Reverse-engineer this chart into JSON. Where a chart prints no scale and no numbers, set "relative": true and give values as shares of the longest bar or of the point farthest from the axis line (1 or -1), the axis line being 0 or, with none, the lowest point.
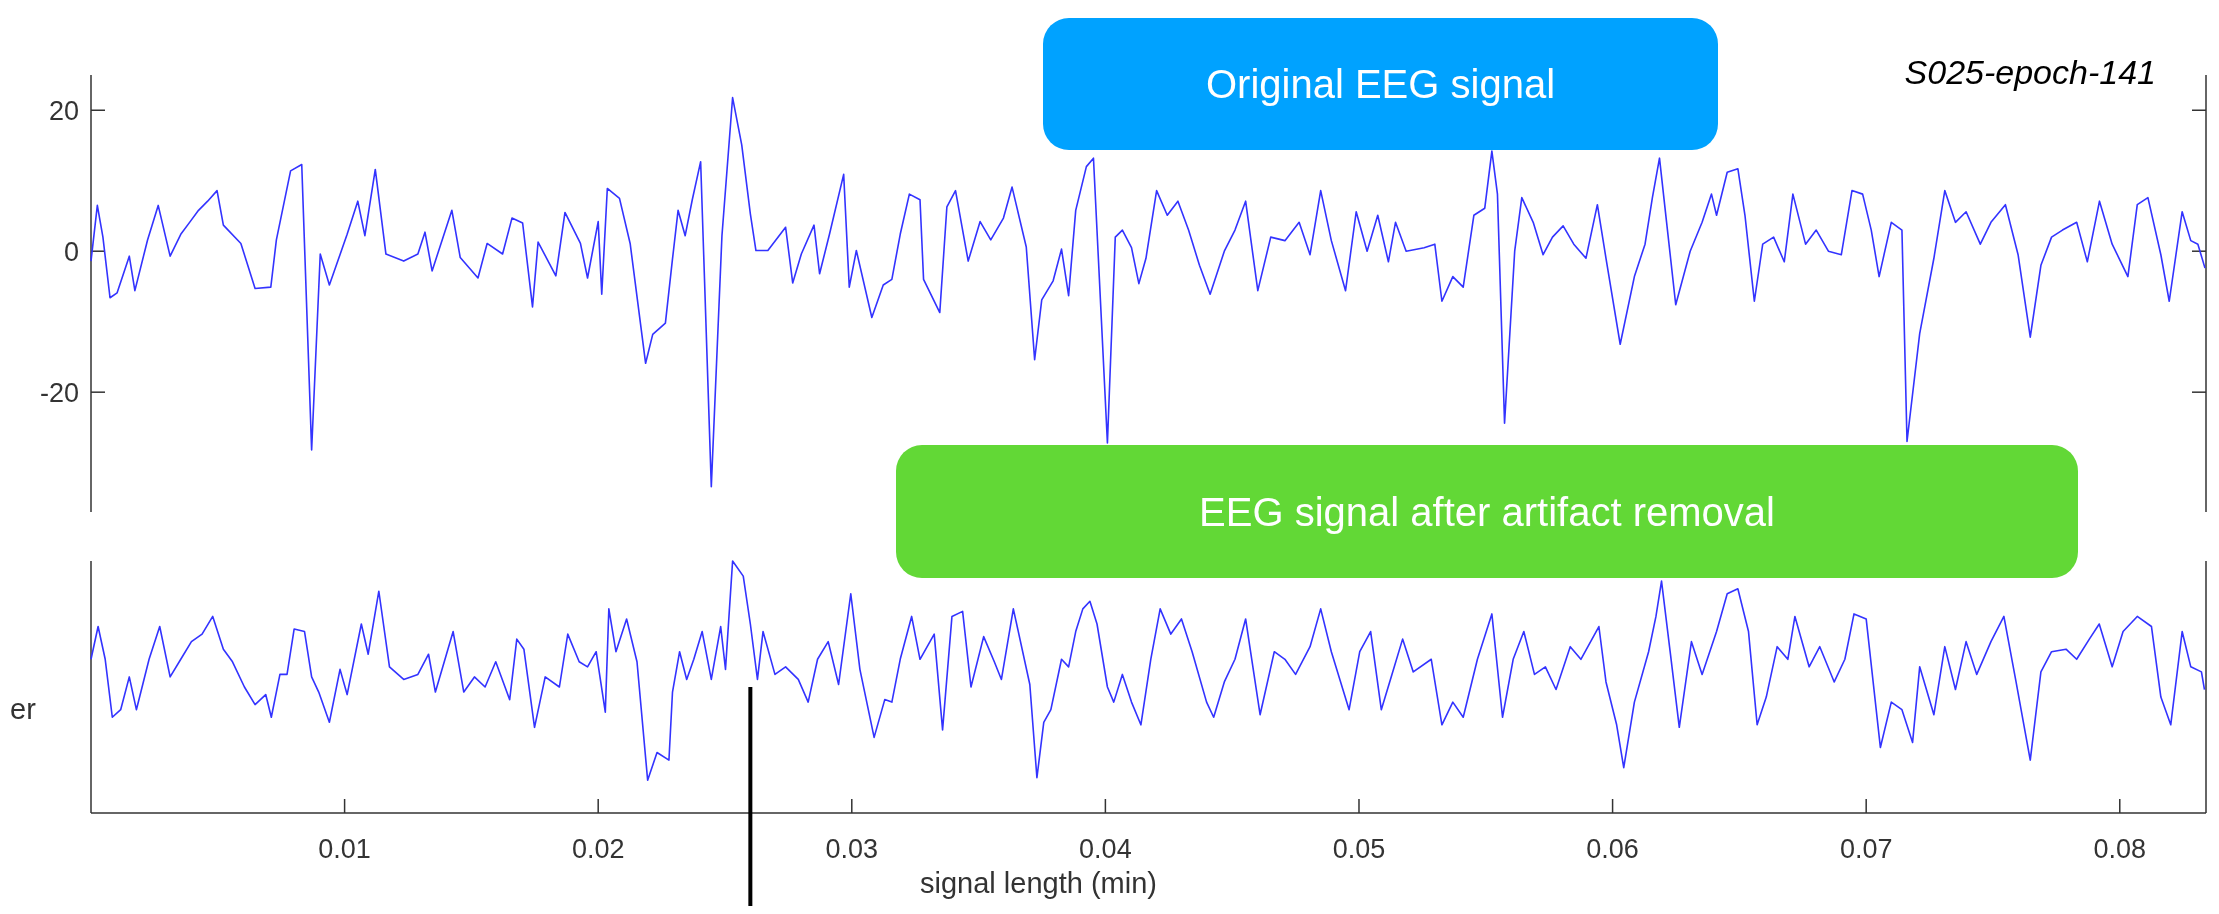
{
  "chart_data": [
    {
      "type": "line",
      "xlim": [
        0,
        0.0834
      ],
      "ylim": [
        -37,
        25
      ],
      "yticks": [
        -20,
        0,
        20
      ],
      "tick_labels": "y",
      "annotations": [
        "Original EEG signal",
        "S025-epoch-141"
      ],
      "series": [
        {
          "color": "#3333ff",
          "x": [
            0,
            0.00025,
            0.00047,
            0.00075,
            0.00103,
            0.00151,
            0.00173,
            0.00223,
            0.00265,
            0.00312,
            0.00354,
            0.00391,
            0.00424,
            0.0046,
            0.00497,
            0.00522,
            0.00591,
            0.00647,
            0.00709,
            0.00731,
            0.00787,
            0.00831,
            0.0087,
            0.00904,
            0.0094,
            0.0101,
            0.01052,
            0.0108,
            0.01121,
            0.01163,
            0.01233,
            0.01289,
            0.01317,
            0.01345,
            0.01423,
            0.01456,
            0.01526,
            0.01562,
            0.01623,
            0.0166,
            0.01702,
            0.01741,
            0.01763,
            0.01833,
            0.01869,
            0.0193,
            0.01958,
            0.02,
            0.02014,
            0.02036,
            0.02084,
            0.02126,
            0.02187,
            0.02215,
            0.02265,
            0.02293,
            0.02315,
            0.02343,
            0.02371,
            0.02404,
            0.02446,
            0.02488,
            0.0253,
            0.02566,
            0.026,
            0.02622,
            0.02669,
            0.02739,
            0.02767,
            0.02801,
            0.02851,
            0.02873,
            0.02912,
            0.02968,
            0.0299,
            0.03018,
            0.03079,
            0.03124,
            0.03158,
            0.03191,
            0.03227,
            0.03269,
            0.03283,
            0.03347,
            0.03375,
            0.03409,
            0.03459,
            0.03506,
            0.03548,
            0.03598,
            0.03632,
            0.03688,
            0.03721,
            0.03749,
            0.03794,
            0.03827,
            0.03855,
            0.03883,
            0.03925,
            0.03953,
            0.04008,
            0.04039,
            0.04067,
            0.04103,
            0.04132,
            0.0416,
            0.04202,
            0.04244,
            0.04286,
            0.04328,
            0.04371,
            0.04413,
            0.04469,
            0.04511,
            0.04553,
            0.04601,
            0.04652,
            0.04708,
            0.04764,
            0.04807,
            0.04849,
            0.04891,
            0.04947,
            0.04989,
            0.05032,
            0.05074,
            0.05116,
            0.05144,
            0.05186,
            0.05257,
            0.05299,
            0.05327,
            0.0537,
            0.05411,
            0.05453,
            0.05496,
            0.05524,
            0.05546,
            0.05574,
            0.05614,
            0.05642,
            0.05687,
            0.05726,
            0.05763,
            0.05805,
            0.05847,
            0.05895,
            0.0594,
            0.05974,
            0.0603,
            0.06086,
            0.06128,
            0.06157,
            0.06185,
            0.06213,
            0.06249,
            0.06306,
            0.06353,
            0.0639,
            0.0641,
            0.06452,
            0.06494,
            0.06522,
            0.06559,
            0.06592,
            0.06635,
            0.06677,
            0.06711,
            0.06761,
            0.06803,
            0.06851,
            0.06902,
            0.06944,
            0.06986,
            0.0702,
            0.07051,
            0.07099,
            0.07141,
            0.07161,
            0.07211,
            0.07267,
            0.0731,
            0.07352,
            0.07394,
            0.0745,
            0.07492,
            0.07549,
            0.07599,
            0.07647,
            0.07689,
            0.07731,
            0.07774,
            0.0783,
            0.07872,
            0.0792,
            0.0797,
            0.08032,
            0.08069,
            0.08111,
            0.08162,
            0.08195,
            0.08246,
            0.0828,
            0.08308,
            0.08336
          ],
          "values": [
            -1.4,
            6.5,
            2.0,
            -6.6,
            -5.9,
            -0.7,
            -5.6,
            1.6,
            6.5,
            -0.7,
            2.4,
            4.2,
            5.8,
            7.1,
            8.6,
            3.7,
            1.1,
            -5.3,
            -5.1,
            1.6,
            11.4,
            12.3,
            -28.2,
            -0.4,
            -4.8,
            2.4,
            7.1,
            2.2,
            11.6,
            -0.4,
            -1.4,
            -0.4,
            2.7,
            -2.8,
            5.8,
            -0.9,
            -3.8,
            1.1,
            -0.4,
            4.7,
            4.0,
            -7.9,
            1.3,
            -3.5,
            5.5,
            1.1,
            -3.8,
            4.2,
            -6.1,
            8.9,
            7.5,
            1.1,
            -15.9,
            -11.8,
            -10.2,
            -1.1,
            5.8,
            2.2,
            7.3,
            12.7,
            -33.4,
            2.2,
            21.8,
            15.1,
            5.3,
            0.1,
            0.1,
            3.4,
            -4.5,
            -0.4,
            3.7,
            -3.2,
            2.4,
            10.9,
            -5.1,
            0.1,
            -9.4,
            -4.8,
            -4.0,
            2.4,
            8.1,
            7.3,
            -4.0,
            -8.7,
            6.3,
            8.6,
            -1.4,
            4.2,
            1.6,
            4.7,
            9.1,
            0.6,
            -15.4,
            -6.9,
            -4.2,
            0.3,
            -6.3,
            5.8,
            12.0,
            13.2,
            -27.2,
            2.0,
            3.0,
            0.5,
            -4.6,
            -1.0,
            8.6,
            5.1,
            7.1,
            3.0,
            -2.0,
            -6.1,
            0,
            3.0,
            7.1,
            -5.6,
            2.0,
            1.5,
            4.1,
            -0.5,
            8.6,
            1.5,
            -5.6,
            5.6,
            0,
            5.1,
            -1.5,
            4.1,
            0,
            0.5,
            1.0,
            -7.1,
            -3.6,
            -5.1,
            5.1,
            6.1,
            14.2,
            8.1,
            -24.4,
            0,
            7.6,
            4.1,
            -0.5,
            2.0,
            3.6,
            1.0,
            -1.0,
            6.6,
            -1.0,
            -13.2,
            -3.6,
            1.0,
            7.6,
            13.2,
            4.1,
            -7.6,
            0,
            4.1,
            8.1,
            5.1,
            11.2,
            11.7,
            5.1,
            -7.1,
            1.0,
            2.0,
            -1.5,
            8.1,
            1.0,
            3.0,
            0,
            -0.5,
            8.6,
            8.1,
            3.0,
            -3.6,
            4.1,
            3.0,
            -27,
            -11.7,
            -1.0,
            8.6,
            4.1,
            5.6,
            1.0,
            4.1,
            6.6,
            -0.5,
            -12.2,
            -2.0,
            2.0,
            3.0,
            4.1,
            -1.5,
            7.1,
            1.0,
            -3.6,
            6.6,
            7.6,
            -0.5,
            -7.1,
            5.6,
            1.5,
            1.0,
            -2.4
          ]
        }
      ]
    },
    {
      "type": "line",
      "relative": true,
      "xlim": [
        0,
        0.0834
      ],
      "xticks": [
        0.01,
        0.02,
        0.03,
        0.04,
        0.05,
        0.06,
        0.07,
        0.08
      ],
      "xlabel": "signal length (min)",
      "ylabel": "er",
      "tick_labels": "x",
      "annotations": [
        "EEG signal after artifact removal"
      ],
      "ref_lines": [
        {
          "axis": "x",
          "value": 0.026,
          "color": "#000000"
        }
      ],
      "series": [
        {
          "color": "#3333ff",
          "x": [
            0,
            0.00028,
            0.00056,
            0.00084,
            0.00117,
            0.00151,
            0.00179,
            0.00229,
            0.00271,
            0.00312,
            0.00354,
            0.00396,
            0.00438,
            0.0048,
            0.00522,
            0.00558,
            0.00605,
            0.00647,
            0.00689,
            0.00711,
            0.00745,
            0.00773,
            0.00801,
            0.00842,
            0.0087,
            0.00898,
            0.0094,
            0.00982,
            0.0101,
            0.01066,
            0.01093,
            0.01135,
            0.01177,
            0.01233,
            0.01289,
            0.01331,
            0.01358,
            0.01428,
            0.0147,
            0.01512,
            0.01554,
            0.01596,
            0.01651,
            0.01679,
            0.01707,
            0.01749,
            0.01791,
            0.01847,
            0.0188,
            0.01925,
            0.01958,
            0.01992,
            0.02028,
            0.02042,
            0.0207,
            0.02112,
            0.02153,
            0.02195,
            0.02232,
            0.02279,
            0.02293,
            0.02321,
            0.02349,
            0.02377,
            0.0241,
            0.02446,
            0.02483,
            0.02502,
            0.0253,
            0.02572,
            0.026,
            0.02628,
            0.0265,
            0.02697,
            0.02739,
            0.02789,
            0.02828,
            0.02865,
            0.02907,
            0.02948,
            0.02996,
            0.03032,
            0.03088,
            0.0313,
            0.03158,
            0.03191,
            0.03236,
            0.03269,
            0.03325,
            0.03358,
            0.03395,
            0.03437,
            0.0347,
            0.0352,
            0.03562,
            0.0359,
            0.03637,
            0.03702,
            0.0373,
            0.03757,
            0.03785,
            0.03827,
            0.03855,
            0.03883,
            0.03911,
            0.03939,
            0.03967,
            0.04008,
            0.04033,
            0.04067,
            0.04103,
            0.0414,
            0.04179,
            0.04216,
            0.04258,
            0.043,
            0.04342,
            0.04399,
            0.04427,
            0.04469,
            0.04511,
            0.04553,
            0.0461,
            0.04666,
            0.04708,
            0.0475,
            0.04807,
            0.04849,
            0.04891,
            0.04961,
            0.05003,
            0.05046,
            0.05088,
            0.0513,
            0.05172,
            0.05214,
            0.05285,
            0.05327,
            0.0537,
            0.05411,
            0.05467,
            0.05524,
            0.05566,
            0.05608,
            0.0565,
            0.05692,
            0.05735,
            0.05777,
            0.05833,
            0.05875,
            0.05946,
            0.05974,
            0.06016,
            0.06044,
            0.06086,
            0.06142,
            0.06171,
            0.06193,
            0.06227,
            0.06263,
            0.06311,
            0.06353,
            0.0641,
            0.06452,
            0.06494,
            0.06536,
            0.0657,
            0.06606,
            0.06649,
            0.06691,
            0.06719,
            0.06775,
            0.06817,
            0.06874,
            0.06916,
            0.06952,
            0.07,
            0.07056,
            0.07099,
            0.07141,
            0.07183,
            0.07211,
            0.07267,
            0.0731,
            0.07352,
            0.07394,
            0.07436,
            0.07492,
            0.07543,
            0.07591,
            0.07647,
            0.07689,
            0.07731,
            0.07788,
            0.0783,
            0.0788,
            0.07919,
            0.0797,
            0.08013,
            0.08069,
            0.08125,
            0.08162,
            0.08201,
            0.08246,
            0.0828,
            0.08322,
            0.08334
          ],
          "values": [
            0.61,
            0.74,
            0.61,
            0.38,
            0.41,
            0.54,
            0.41,
            0.61,
            0.74,
            0.54,
            0.61,
            0.68,
            0.71,
            0.78,
            0.65,
            0.6,
            0.5,
            0.43,
            0.47,
            0.38,
            0.55,
            0.55,
            0.73,
            0.72,
            0.54,
            0.48,
            0.36,
            0.57,
            0.47,
            0.75,
            0.63,
            0.88,
            0.58,
            0.53,
            0.55,
            0.63,
            0.48,
            0.72,
            0.48,
            0.54,
            0.5,
            0.6,
            0.45,
            0.69,
            0.65,
            0.34,
            0.54,
            0.5,
            0.71,
            0.6,
            0.58,
            0.64,
            0.4,
            0.81,
            0.64,
            0.77,
            0.6,
            0.13,
            0.24,
            0.21,
            0.48,
            0.64,
            0.53,
            0.61,
            0.72,
            0.53,
            0.74,
            0.57,
            1,
            0.94,
            0.75,
            0.53,
            0.72,
            0.55,
            0.58,
            0.53,
            0.44,
            0.61,
            0.68,
            0.51,
            0.87,
            0.57,
            0.3,
            0.45,
            0.44,
            0.61,
            0.78,
            0.61,
            0.71,
            0.33,
            0.78,
            0.8,
            0.5,
            0.7,
            0.6,
            0.53,
            0.81,
            0.51,
            0.14,
            0.36,
            0.41,
            0.61,
            0.58,
            0.72,
            0.81,
            0.84,
            0.75,
            0.5,
            0.44,
            0.55,
            0.44,
            0.35,
            0.61,
            0.81,
            0.71,
            0.77,
            0.64,
            0.44,
            0.38,
            0.52,
            0.61,
            0.77,
            0.39,
            0.64,
            0.61,
            0.55,
            0.66,
            0.81,
            0.64,
            0.41,
            0.64,
            0.72,
            0.41,
            0.55,
            0.69,
            0.56,
            0.61,
            0.35,
            0.44,
            0.38,
            0.61,
            0.79,
            0.38,
            0.61,
            0.72,
            0.55,
            0.58,
            0.49,
            0.66,
            0.61,
            0.74,
            0.52,
            0.35,
            0.18,
            0.44,
            0.64,
            0.78,
            0.92,
            0.64,
            0.34,
            0.68,
            0.55,
            0.72,
            0.87,
            0.89,
            0.72,
            0.35,
            0.46,
            0.66,
            0.61,
            0.78,
            0.58,
            0.66,
            0.52,
            0.61,
            0.79,
            0.77,
            0.26,
            0.44,
            0.41,
            0.28,
            0.58,
            0.39,
            0.66,
            0.49,
            0.68,
            0.55,
            0.68,
            0.78,
            0.52,
            0.21,
            0.56,
            0.64,
            0.65,
            0.61,
            0.69,
            0.75,
            0.58,
            0.72,
            0.78,
            0.74,
            0.46,
            0.35,
            0.72,
            0.58,
            0.56,
            0.49
          ]
        }
      ]
    }
  ]
}
